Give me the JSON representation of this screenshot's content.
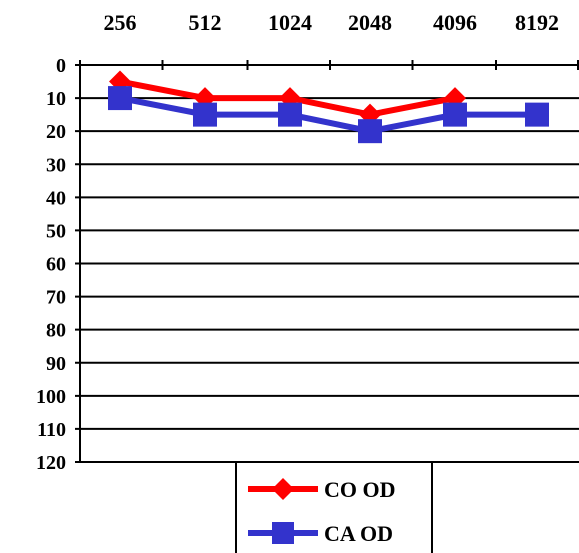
{
  "chart_data": {
    "type": "line",
    "x_ticks": [
      "256",
      "512",
      "1024",
      "2048",
      "4096",
      "8192"
    ],
    "y_ticks": [
      "0",
      "10",
      "20",
      "30",
      "40",
      "50",
      "60",
      "70",
      "80",
      "90",
      "100",
      "110",
      "120"
    ],
    "ylim": [
      0,
      120
    ],
    "y_inverted": true,
    "x_axis_position": "top",
    "grid": "horizontal",
    "legend_position": "bottom-center",
    "series": [
      {
        "name": "CO OD",
        "color": "#ff0000",
        "marker": "diamond",
        "values": [
          5,
          10,
          10,
          15,
          10,
          null
        ]
      },
      {
        "name": "CA OD",
        "color": "#3333cc",
        "marker": "square",
        "values": [
          10,
          15,
          15,
          20,
          15,
          15
        ]
      }
    ]
  }
}
